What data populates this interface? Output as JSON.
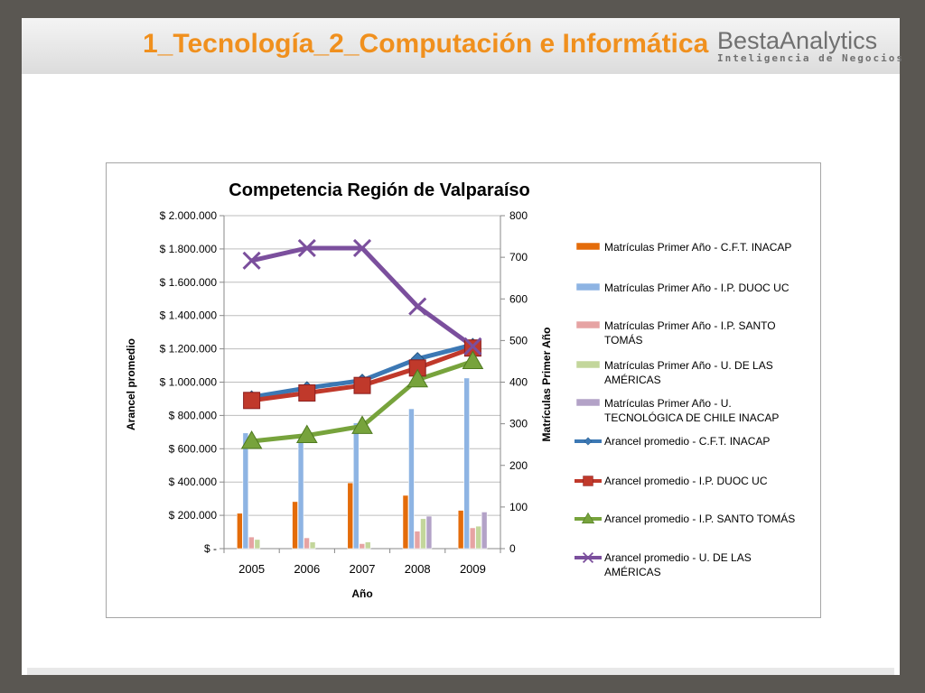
{
  "slide": {
    "title": "1_Tecnología_2_Computación e Informática",
    "logo_main": "BestaAnalytics",
    "logo_sub": "Inteligencia de Negocios"
  },
  "chart_data": {
    "type": "bar",
    "title": "Competencia Región de Valparaíso",
    "xlabel": "Año",
    "ylabel": "Arancel promedio",
    "y2label": "Matrículas Primer Año",
    "categories": [
      "2005",
      "2006",
      "2007",
      "2008",
      "2009"
    ],
    "ylim": [
      0,
      2000000
    ],
    "y2lim": [
      0,
      800
    ],
    "y_ticks": [
      "$ -",
      "$ 200.000",
      "$ 400.000",
      "$ 600.000",
      "$ 800.000",
      "$ 1.000.000",
      "$ 1.200.000",
      "$ 1.400.000",
      "$ 1.600.000",
      "$ 1.800.000",
      "$ 2.000.000"
    ],
    "y2_ticks": [
      "0",
      "100",
      "200",
      "300",
      "400",
      "500",
      "600",
      "700",
      "800"
    ],
    "grid": true,
    "legend_position": "right",
    "bar_series": [
      {
        "name": "Matrículas Primer Año - C.F.T. INACAP",
        "color": "#e46c0a",
        "values": [
          85,
          113,
          158,
          128,
          92
        ]
      },
      {
        "name": "Matrículas Primer Año - I.P. DUOC UC",
        "color": "#8eb4e3",
        "values": [
          278,
          270,
          302,
          336,
          410
        ]
      },
      {
        "name": "Matrículas Primer Año - I.P. SANTO TOMÁS",
        "color": "#e6a3a3",
        "values": [
          28,
          26,
          12,
          42,
          50
        ]
      },
      {
        "name": "Matrículas Primer Año - U. DE LAS AMÉRICAS",
        "color": "#c3d69b",
        "values": [
          22,
          16,
          16,
          72,
          54
        ]
      },
      {
        "name": "Matrículas Primer Año - U. TECNOLÓGICA DE CHILE INACAP",
        "color": "#b3a2c7",
        "values": [
          0,
          0,
          0,
          78,
          88
        ]
      }
    ],
    "line_series": [
      {
        "name": "Arancel promedio  - C.F.T. INACAP",
        "color": "#3c78b4",
        "marker": "diamond",
        "values": [
          910000,
          965000,
          1010000,
          1140000,
          1225000
        ]
      },
      {
        "name": "Arancel promedio  - I.P. DUOC UC",
        "color": "#c0392b",
        "marker": "square",
        "values": [
          890000,
          935000,
          980000,
          1085000,
          1205000
        ]
      },
      {
        "name": "Arancel promedio  - I.P. SANTO TOMÁS",
        "color": "#77a33c",
        "marker": "triangle",
        "values": [
          645000,
          680000,
          735000,
          1015000,
          1125000
        ]
      },
      {
        "name": "Arancel promedio  - U. DE LAS AMÉRICAS",
        "color": "#7b4f9d",
        "marker": "x",
        "values": [
          1730000,
          1805000,
          1805000,
          1455000,
          1215000
        ]
      }
    ],
    "legend_labels": [
      [
        "Matrículas Primer Año - C.F.T. INACAP"
      ],
      [
        "Matrículas Primer Año - I.P. DUOC UC"
      ],
      [
        "Matrículas Primer Año - I.P. SANTO",
        "TOMÁS"
      ],
      [
        "Matrículas Primer Año - U. DE LAS",
        "AMÉRICAS"
      ],
      [
        "Matrículas Primer Año - U.",
        "TECNOLÓGICA DE CHILE INACAP"
      ],
      [
        "Arancel promedio  - C.F.T. INACAP"
      ],
      [
        "Arancel promedio  - I.P. DUOC UC"
      ],
      [
        "Arancel promedio  - I.P. SANTO TOMÁS"
      ],
      [
        "Arancel promedio  - U. DE LAS",
        "AMÉRICAS"
      ]
    ]
  }
}
